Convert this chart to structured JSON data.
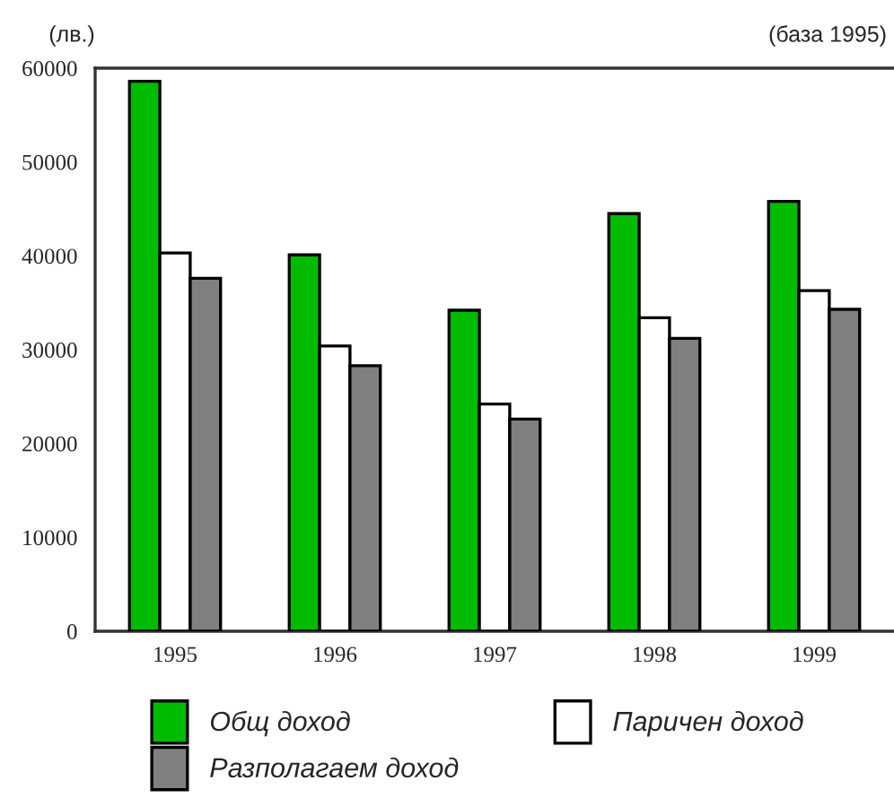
{
  "chart_data": {
    "type": "bar",
    "ylabel": "(лв.)",
    "annotations": [
      "(база 1995)"
    ],
    "categories": [
      "1995",
      "1996",
      "1997",
      "1998",
      "1999"
    ],
    "series": [
      {
        "name": "Общ доход",
        "color": "#00bb00",
        "values": [
          58600,
          40100,
          34200,
          44500,
          45800
        ]
      },
      {
        "name": "Паричен доход",
        "color": "#ffffff",
        "values": [
          40300,
          30400,
          24200,
          33400,
          36300
        ]
      },
      {
        "name": "Разполагаем доход",
        "color": "#808080",
        "values": [
          37600,
          28300,
          22600,
          31200,
          34300
        ]
      }
    ],
    "ylim": [
      0,
      60000
    ],
    "yticks": [
      0,
      10000,
      20000,
      30000,
      40000,
      50000,
      60000
    ],
    "grid": false,
    "legend": "bottom"
  }
}
